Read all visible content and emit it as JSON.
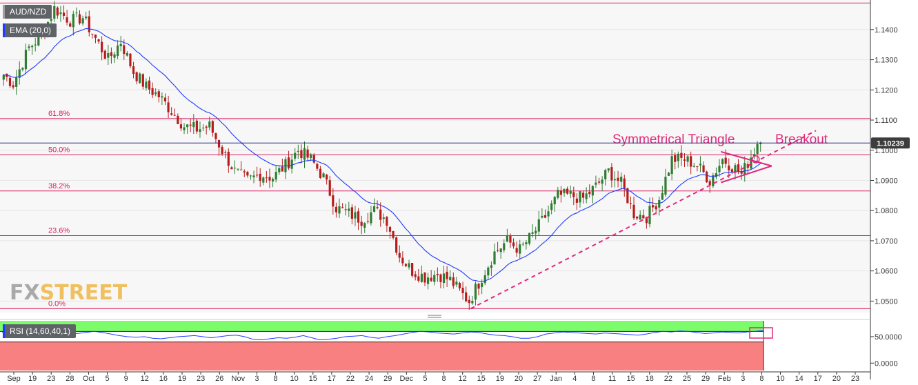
{
  "symbol_label": "AUD/NZD",
  "ema_label": "EMA (20,0)",
  "rsi_label": "RSI (14,60,40,1)",
  "watermark": {
    "part1": "FX",
    "part2": "STREET"
  },
  "colors": {
    "candle_up": "#2e7d32",
    "candle_down": "#b71c1c",
    "ema": "#1e3cff",
    "fib": "#d81b60",
    "annotation": "#e0297a",
    "rsi_line": "#1e3cff",
    "rsi_overbought_zone": "#7cfc6a",
    "rsi_oversold_zone": "#f88080",
    "price_tag": "#3d3d3d"
  },
  "chart_data": {
    "type": "candlestick",
    "current_price": "1.10239",
    "y_ticks": [
      "1.1400",
      "1.1300",
      "1.1200",
      "1.1100",
      "1.1000",
      "1.0900",
      "1.0800",
      "1.0700",
      "1.0600",
      "1.0500"
    ],
    "y_values": [
      1.14,
      1.13,
      1.12,
      1.11,
      1.1,
      1.09,
      1.08,
      1.07,
      1.06,
      1.05
    ],
    "ylim": [
      1.0462,
      1.1498
    ],
    "x_ticks": [
      "Sep",
      "19",
      "23",
      "28",
      "Oct",
      "5",
      "9",
      "12",
      "16",
      "19",
      "23",
      "26",
      "Nov",
      "3",
      "8",
      "10",
      "15",
      "17",
      "22",
      "24",
      "29",
      "Dec",
      "5",
      "8",
      "12",
      "15",
      "19",
      "20",
      "27",
      "Jan",
      "4",
      "8",
      "11",
      "15",
      "18",
      "22",
      "25",
      "29",
      "Feb",
      "3",
      "8",
      "10",
      "14",
      "17",
      "20",
      "23"
    ],
    "fibonacci": [
      {
        "label": "61.8%",
        "value": 1.1105
      },
      {
        "label": "50.0%",
        "value": 1.0985
      },
      {
        "label": "38.2%",
        "value": 1.0865
      },
      {
        "label": "23.6%",
        "value": 1.0717
      },
      {
        "label": "0.0%",
        "value": 1.0475
      }
    ],
    "top_line": 1.1488,
    "annotations": [
      "Symmetrical Triangle",
      "Breakout"
    ],
    "path_points": [
      [
        0,
        1.126
      ],
      [
        4,
        1.122
      ],
      [
        9,
        1.134
      ],
      [
        13,
        1.138
      ],
      [
        17,
        1.147
      ],
      [
        22,
        1.143
      ],
      [
        26,
        1.144
      ],
      [
        30,
        1.137
      ],
      [
        34,
        1.13
      ],
      [
        38,
        1.136
      ],
      [
        42,
        1.126
      ],
      [
        46,
        1.121
      ],
      [
        50,
        1.118
      ],
      [
        54,
        1.113
      ],
      [
        58,
        1.108
      ],
      [
        62,
        1.107
      ],
      [
        66,
        1.108
      ],
      [
        70,
        1.1
      ],
      [
        74,
        1.093
      ],
      [
        78,
        1.09
      ],
      [
        82,
        1.092
      ],
      [
        86,
        1.091
      ],
      [
        90,
        1.095
      ],
      [
        94,
        1.1
      ],
      [
        98,
        1.097
      ],
      [
        102,
        1.091
      ],
      [
        106,
        1.081
      ],
      [
        110,
        1.079
      ],
      [
        114,
        1.077
      ],
      [
        118,
        1.08
      ],
      [
        122,
        1.077
      ],
      [
        126,
        1.065
      ],
      [
        130,
        1.06
      ],
      [
        134,
        1.058
      ],
      [
        138,
        1.059
      ],
      [
        142,
        1.057
      ],
      [
        146,
        1.052
      ],
      [
        148,
        1.05
      ],
      [
        152,
        1.058
      ],
      [
        156,
        1.066
      ],
      [
        160,
        1.07
      ],
      [
        164,
        1.067
      ],
      [
        168,
        1.072
      ],
      [
        172,
        1.078
      ],
      [
        176,
        1.085
      ],
      [
        180,
        1.085
      ],
      [
        184,
        1.084
      ],
      [
        188,
        1.088
      ],
      [
        192,
        1.093
      ],
      [
        196,
        1.089
      ],
      [
        200,
        1.079
      ],
      [
        204,
        1.078
      ],
      [
        208,
        1.084
      ],
      [
        212,
        1.097
      ],
      [
        216,
        1.097
      ],
      [
        220,
        1.095
      ],
      [
        224,
        1.09
      ],
      [
        228,
        1.097
      ],
      [
        232,
        1.094
      ],
      [
        234,
        1.092
      ],
      [
        236,
        1.096
      ],
      [
        238,
        1.1
      ],
      [
        239,
        1.1025
      ]
    ],
    "total_days": 240,
    "triangle": {
      "upper": [
        [
          227,
          1.0995
        ],
        [
          238,
          1.0965
        ]
      ],
      "lower": [
        [
          227,
          1.0893
        ],
        [
          238,
          1.093
        ]
      ],
      "apex": [
        243,
        1.0948
      ]
    },
    "trendline": {
      "from": [
        148,
        1.0475
      ],
      "to": [
        257,
        1.1065
      ]
    },
    "rsi": {
      "ticks": [
        "50.0000",
        "0.0000"
      ],
      "tick_values": [
        50,
        0
      ],
      "ylim": [
        -14,
        80
      ],
      "overbought": 60,
      "oversold": 40,
      "values": [
        58,
        59,
        57,
        60,
        58,
        56,
        58,
        60,
        57,
        56,
        58,
        60,
        58,
        55,
        52,
        50,
        49,
        50,
        47,
        46,
        48,
        50,
        51,
        52,
        50,
        48,
        50,
        52,
        53,
        50,
        45,
        44,
        46,
        48,
        47,
        49,
        52,
        48,
        44,
        45,
        47,
        50,
        51,
        52,
        49,
        47,
        50,
        52,
        55,
        58,
        60,
        59,
        57,
        56,
        55,
        57,
        59,
        58,
        55,
        53,
        52,
        50,
        47,
        47,
        50,
        55,
        57,
        59,
        58,
        57,
        56,
        55,
        57,
        56,
        55,
        54,
        53,
        55,
        58,
        60,
        59,
        61,
        60,
        58,
        56,
        57,
        59,
        58,
        57,
        59,
        60,
        62
      ]
    }
  }
}
